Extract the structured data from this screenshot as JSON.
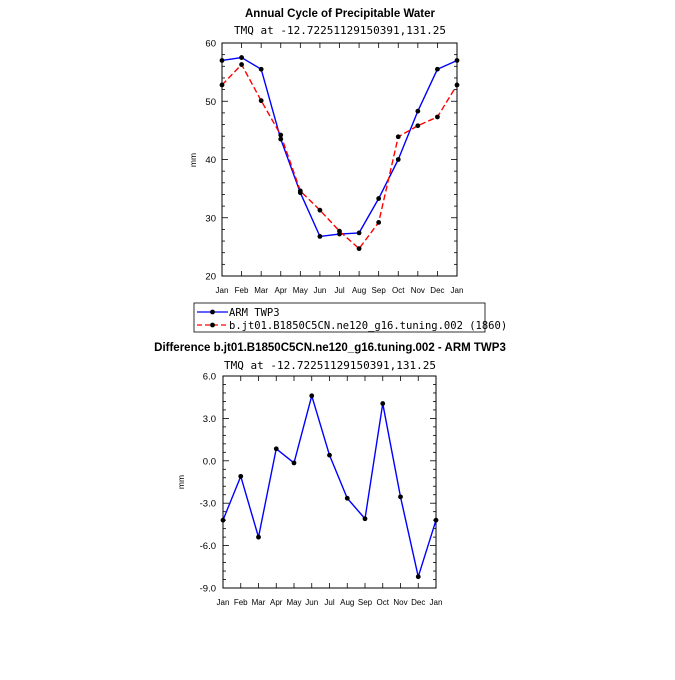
{
  "chart_data": [
    {
      "type": "line",
      "title": "Annual Cycle of Precipitable Water",
      "subtitle": "TMQ at  -12.72251129150391,131.25",
      "ylabel": "mm",
      "xlabel": "",
      "categories": [
        "Jan",
        "Feb",
        "Mar",
        "Apr",
        "May",
        "Jun",
        "Jul",
        "Aug",
        "Sep",
        "Oct",
        "Nov",
        "Dec",
        "Jan"
      ],
      "ylim": [
        20,
        60
      ],
      "yticks": [
        "20",
        "30",
        "40",
        "50",
        "60"
      ],
      "ytick_values": [
        20,
        30,
        40,
        50,
        60
      ],
      "series": [
        {
          "name": "ARM TWP3",
          "color": "#0000ff",
          "dash": "solid",
          "values": [
            57.0,
            57.5,
            55.5,
            43.5,
            34.3,
            26.8,
            27.2,
            27.4,
            33.3,
            40.0,
            48.3,
            55.5,
            57.0
          ]
        },
        {
          "name": "b.jt01.B1850C5CN.ne120_g16.tuning.002 (1860)",
          "color": "#ff0000",
          "dash": "dashed",
          "values": [
            52.8,
            56.3,
            50.1,
            44.2,
            34.6,
            31.3,
            27.7,
            24.7,
            29.2,
            43.9,
            45.8,
            47.3,
            52.8
          ]
        }
      ],
      "legend_position": "bottom"
    },
    {
      "type": "line",
      "title": "Difference b.jt01.B1850C5CN.ne120_g16.tuning.002 - ARM TWP3",
      "subtitle": "TMQ at  -12.72251129150391,131.25",
      "ylabel": "mm",
      "xlabel": "",
      "categories": [
        "Jan",
        "Feb",
        "Mar",
        "Apr",
        "May",
        "Jun",
        "Jul",
        "Aug",
        "Sep",
        "Oct",
        "Nov",
        "Dec",
        "Jan"
      ],
      "ylim": [
        -9,
        6
      ],
      "yticks": [
        "-9.0",
        "-6.0",
        "-3.0",
        "0.0",
        "3.0",
        "6.0"
      ],
      "ytick_values": [
        -9,
        -6,
        -3,
        0,
        3,
        6
      ],
      "series": [
        {
          "name": "Difference",
          "color": "#0000ff",
          "dash": "solid",
          "values": [
            -4.2,
            -1.1,
            -5.4,
            0.85,
            -0.15,
            4.6,
            0.4,
            -2.65,
            -4.1,
            4.05,
            -2.55,
            -8.2,
            -4.2
          ]
        }
      ]
    }
  ]
}
